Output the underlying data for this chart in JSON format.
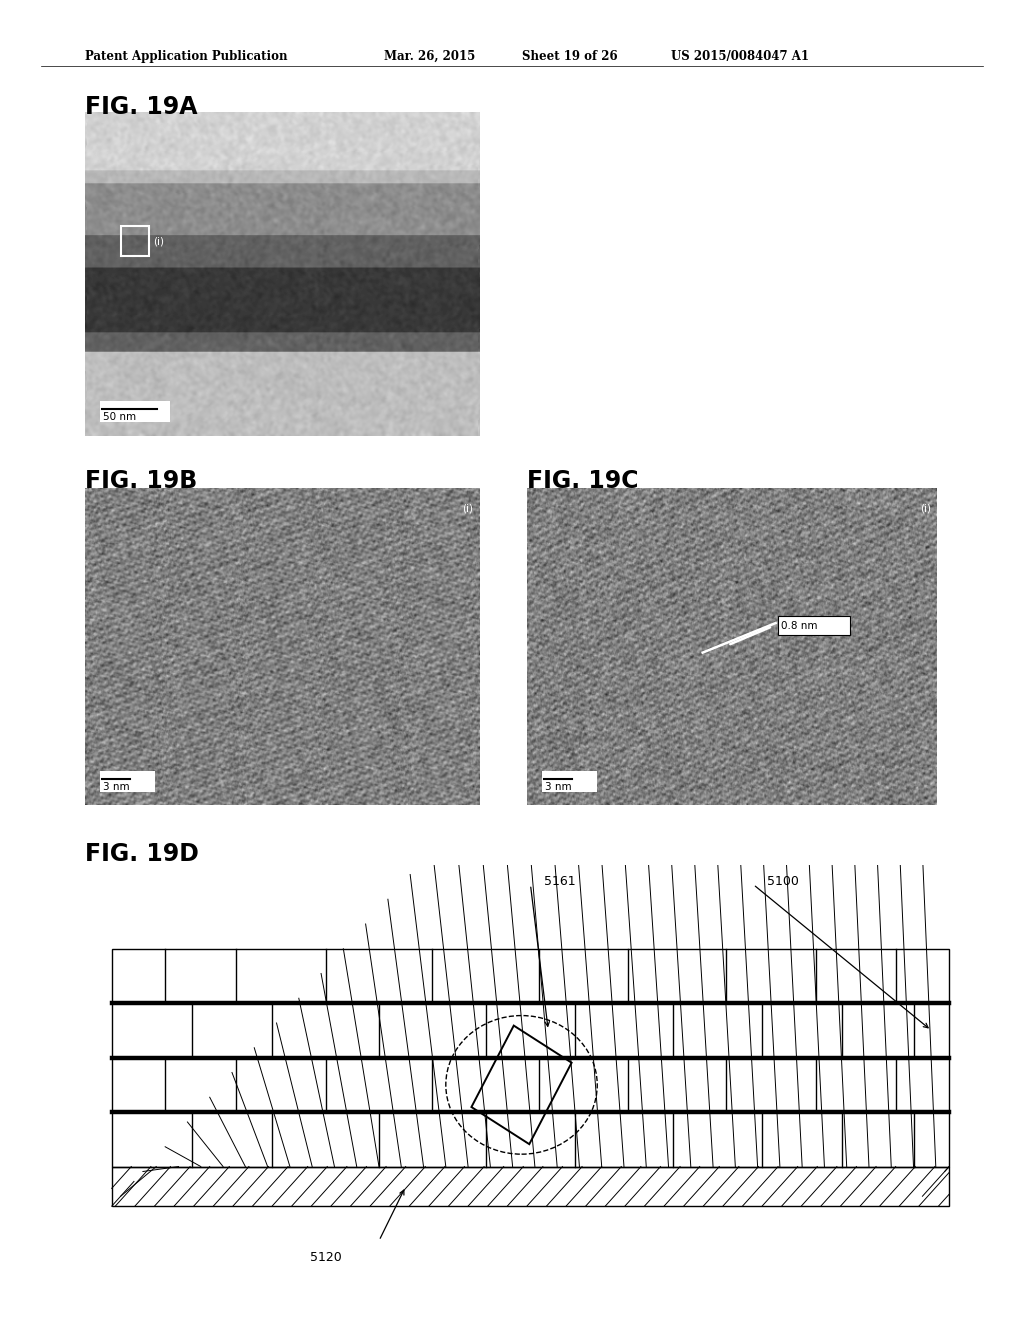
{
  "bg_color": "#ffffff",
  "header_text": "Patent Application Publication",
  "header_date": "Mar. 26, 2015",
  "header_sheet": "Sheet 19 of 26",
  "header_patent": "US 2015/0084047 A1",
  "fig_labels": [
    "FIG. 19A",
    "FIG. 19B",
    "FIG. 19C",
    "FIG. 19D"
  ],
  "scale_bars": [
    "50 nm",
    "3 nm",
    "3 nm"
  ],
  "annotation_0p8nm": "0.8 nm",
  "label_5161": "5161",
  "label_5100": "5100",
  "label_5120": "5120"
}
